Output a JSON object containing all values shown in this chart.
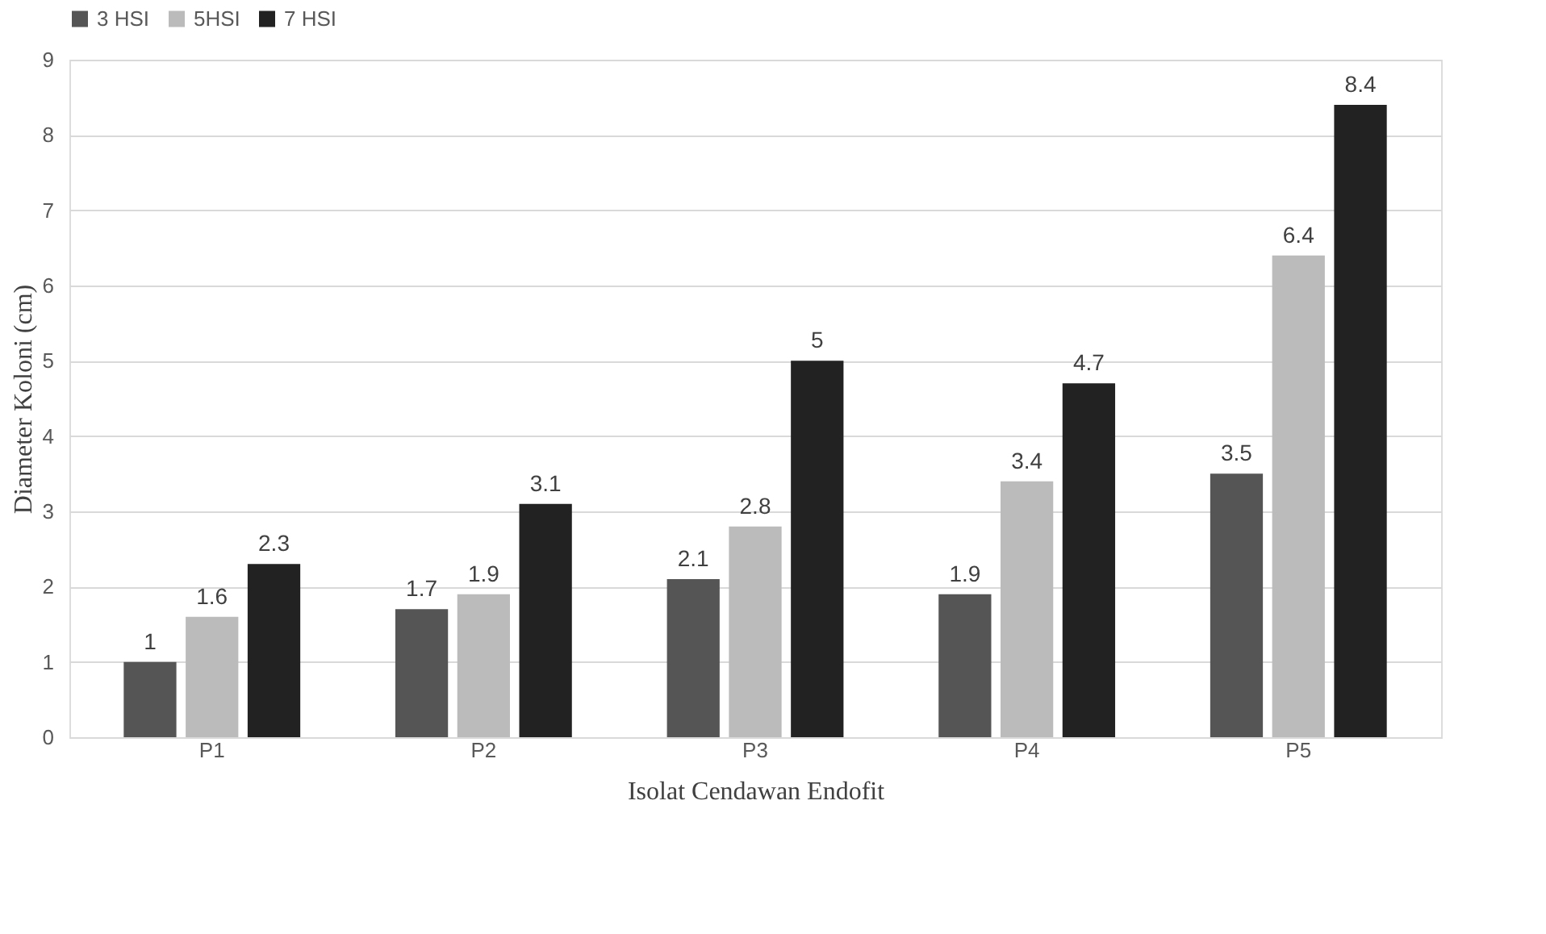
{
  "chart_data": {
    "type": "bar",
    "xlabel": "Isolat Cendawan Endofit",
    "ylabel": "Diameter Koloni (cm)",
    "categories": [
      "P1",
      "P2",
      "P3",
      "P4",
      "P5"
    ],
    "series": [
      {
        "name": "3 HSI",
        "color": "#555555",
        "values": [
          1,
          1.7,
          2.1,
          1.9,
          3.5
        ]
      },
      {
        "name": "5HSI",
        "color": "#bbbbbb",
        "values": [
          1.6,
          1.9,
          2.8,
          3.4,
          6.4
        ]
      },
      {
        "name": "7 HSI",
        "color": "#222222",
        "values": [
          2.3,
          3.1,
          5,
          4.7,
          8.4
        ]
      }
    ],
    "ylim": [
      0,
      9
    ],
    "yticks": [
      0,
      1,
      2,
      3,
      4,
      5,
      6,
      7,
      8,
      9
    ],
    "grid": "y",
    "legend": "top",
    "data_labels": true
  }
}
